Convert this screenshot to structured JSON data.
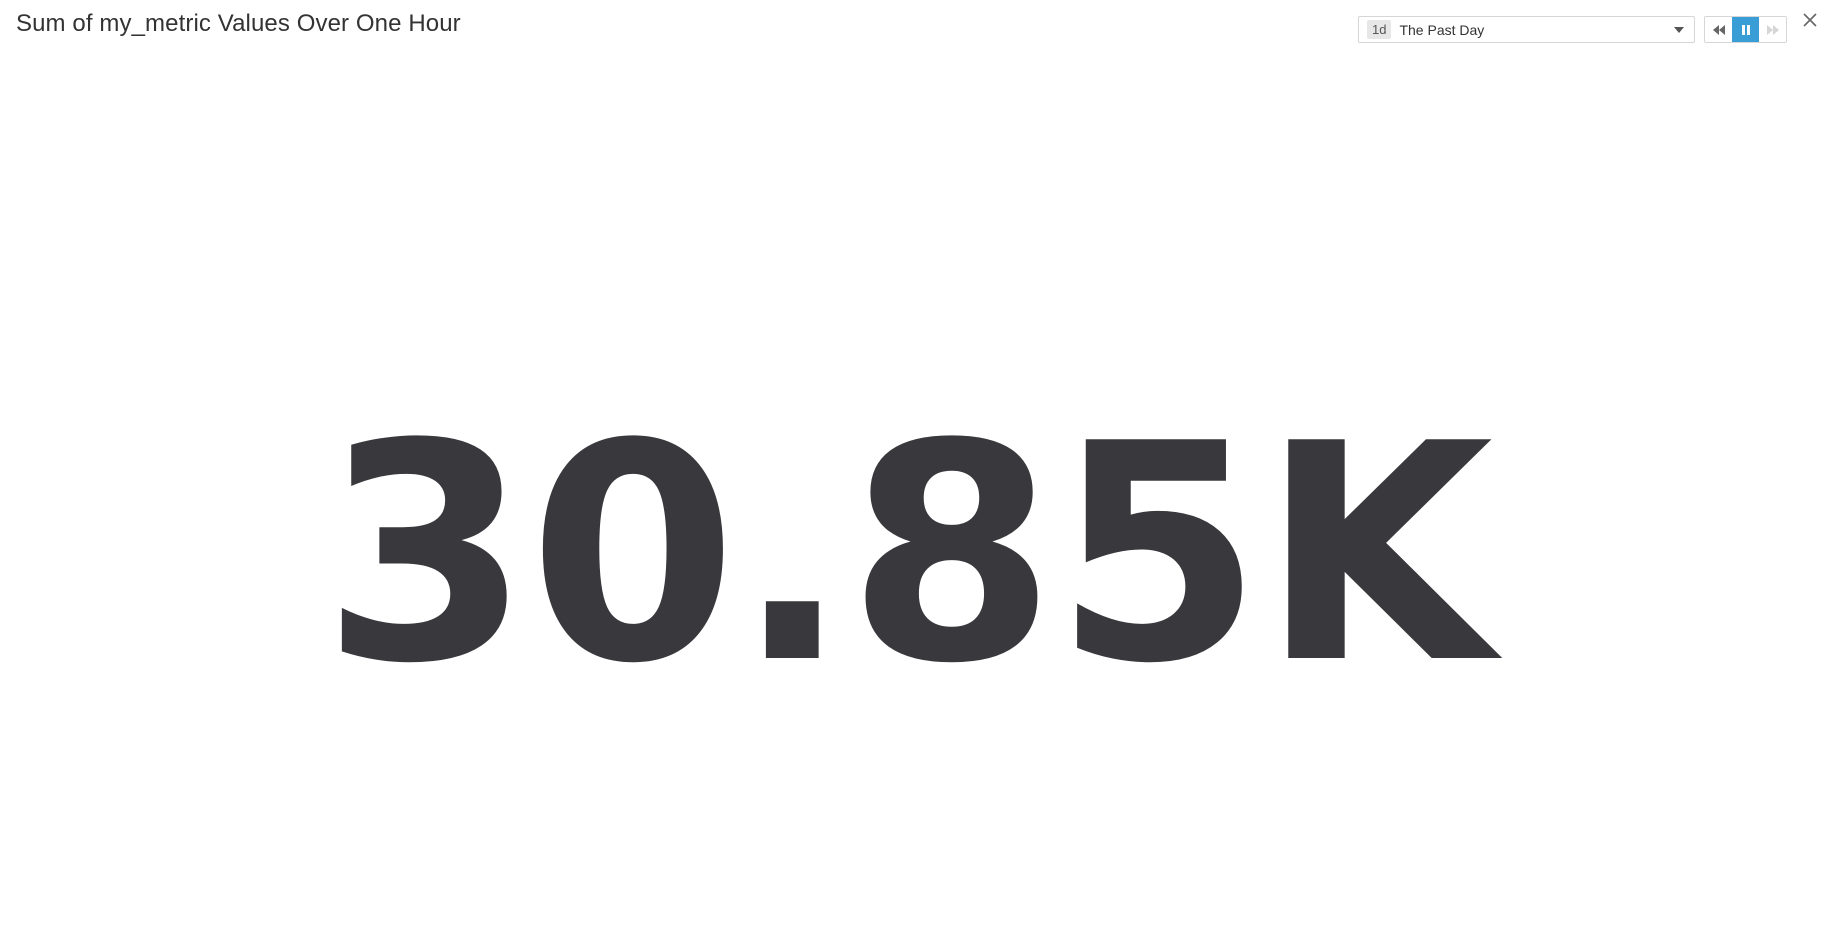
{
  "widget": {
    "title": "Sum of my_metric Values Over One Hour"
  },
  "time_selector": {
    "badge": "1d",
    "label": "The Past Day",
    "caret_icon": "chevron-down-icon"
  },
  "playback": {
    "rewind_icon": "rewind-icon",
    "pause_icon": "pause-icon",
    "forward_icon": "fast-forward-icon",
    "active_color": "#3a9ed6"
  },
  "close": {
    "icon": "close-icon"
  },
  "query_value": {
    "display": "30.85K",
    "color": "#39383d"
  }
}
